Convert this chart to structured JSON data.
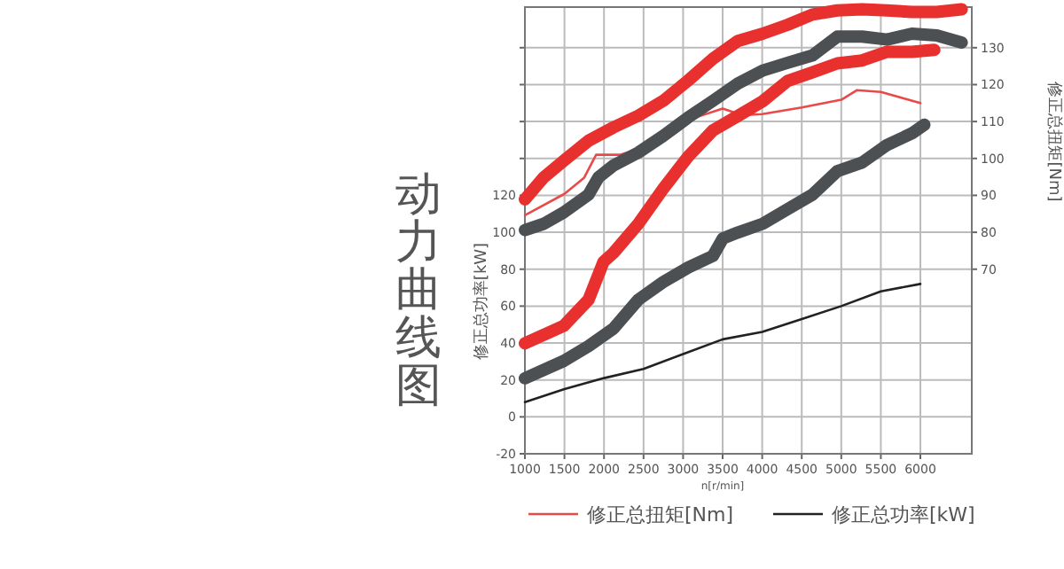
{
  "chart_data": {
    "type": "line",
    "title": "动力曲线图",
    "xlabel": "n[r/min]",
    "ylabel": "修正总功率[kW]",
    "y2label": "修正总扭矩[Nm]",
    "xlim": [
      1000,
      6650
    ],
    "xticks": [
      1000,
      1500,
      2000,
      2500,
      3000,
      3500,
      4000,
      4500,
      5000,
      5500,
      6000
    ],
    "ylim": [
      -20,
      222
    ],
    "yticks": [
      -20,
      0,
      20,
      40,
      60,
      80,
      100,
      120,
      {
        "value": 140,
        "label": null
      },
      {
        "value": 160,
        "label": null
      },
      {
        "value": 180,
        "label": null
      },
      {
        "value": 200,
        "label": null
      }
    ],
    "y2lim": [
      20,
      141
    ],
    "y2ticks": [
      70,
      80,
      90,
      100,
      110,
      120,
      130
    ],
    "grid": true,
    "legend": "bottom",
    "series": [
      {
        "name": "修正总扭矩[Nm]",
        "color": "#e84a4a",
        "axis": "y2",
        "x": [
          1000,
          1500,
          1750,
          1900,
          2200,
          2500,
          3000,
          3500,
          3750,
          4000,
          4500,
          5000,
          5200,
          5500,
          6000
        ],
        "values": [
          84.6,
          90.4,
          94.8,
          101,
          101,
          103,
          110,
          113.5,
          111.7,
          112,
          113.8,
          115.9,
          118.5,
          118,
          115
        ]
      },
      {
        "name": "修正总功率[kW]",
        "color": "#222222",
        "x": [
          1000,
          1500,
          2000,
          2500,
          3000,
          3500,
          4000,
          4500,
          5000,
          5500,
          6000
        ],
        "values": [
          8,
          15,
          21,
          26,
          34,
          42,
          46,
          53,
          60,
          68,
          72
        ]
      },
      {
        "color": "#e8312f",
        "axis": "y2",
        "x": [
          1000,
          1239,
          1491,
          1805,
          2119,
          2434,
          2748,
          3063,
          3377,
          3692,
          4006,
          4321,
          4635,
          4950,
          5264,
          5579,
          5893,
          6208,
          6522
        ],
        "values": [
          88.9,
          94.9,
          99.4,
          104.8,
          108.4,
          111.6,
          115.6,
          121.1,
          127,
          131.8,
          133.8,
          136.2,
          139,
          140.1,
          140.4,
          140.1,
          139.7,
          139.7,
          140.4
        ]
      },
      {
        "color": "#4d5052",
        "axis": "y2",
        "x": [
          1000,
          1239,
          1491,
          1805,
          1931,
          2119,
          2434,
          2748,
          3063,
          3377,
          3692,
          4006,
          4321,
          4635,
          4950,
          5264,
          5579,
          5893,
          6208,
          6522
        ],
        "values": [
          80.6,
          82.3,
          85.4,
          90.2,
          94.9,
          98.1,
          101.6,
          106.1,
          111.1,
          115.6,
          120.3,
          123.8,
          125.9,
          127.9,
          133,
          133,
          132.2,
          133.8,
          133.3,
          131.4
        ]
      },
      {
        "color": "#e8312f",
        "x": [
          1000,
          1491,
          1805,
          1994,
          2119,
          2434,
          2748,
          3063,
          3377,
          3692,
          4006,
          4321,
          4635,
          4950,
          5264,
          5579,
          5893,
          6176
        ],
        "values": [
          39.8,
          49.3,
          63.5,
          84,
          88.8,
          104.6,
          123.6,
          141,
          155.2,
          163,
          171,
          182,
          186.7,
          191.5,
          193.1,
          197.8,
          197.8,
          198.8
        ]
      },
      {
        "color": "#4d5052",
        "x": [
          1000,
          1491,
          1805,
          2119,
          2434,
          2748,
          3063,
          3377,
          3503,
          3692,
          4006,
          4321,
          4635,
          4950,
          5264,
          5579,
          5893,
          6050
        ],
        "values": [
          20.9,
          30.3,
          38.3,
          47.8,
          63.5,
          73,
          80.9,
          87.2,
          96.7,
          99.9,
          104.6,
          112.5,
          120.4,
          133.1,
          137.8,
          147.3,
          153.6,
          158.3
        ]
      }
    ]
  }
}
